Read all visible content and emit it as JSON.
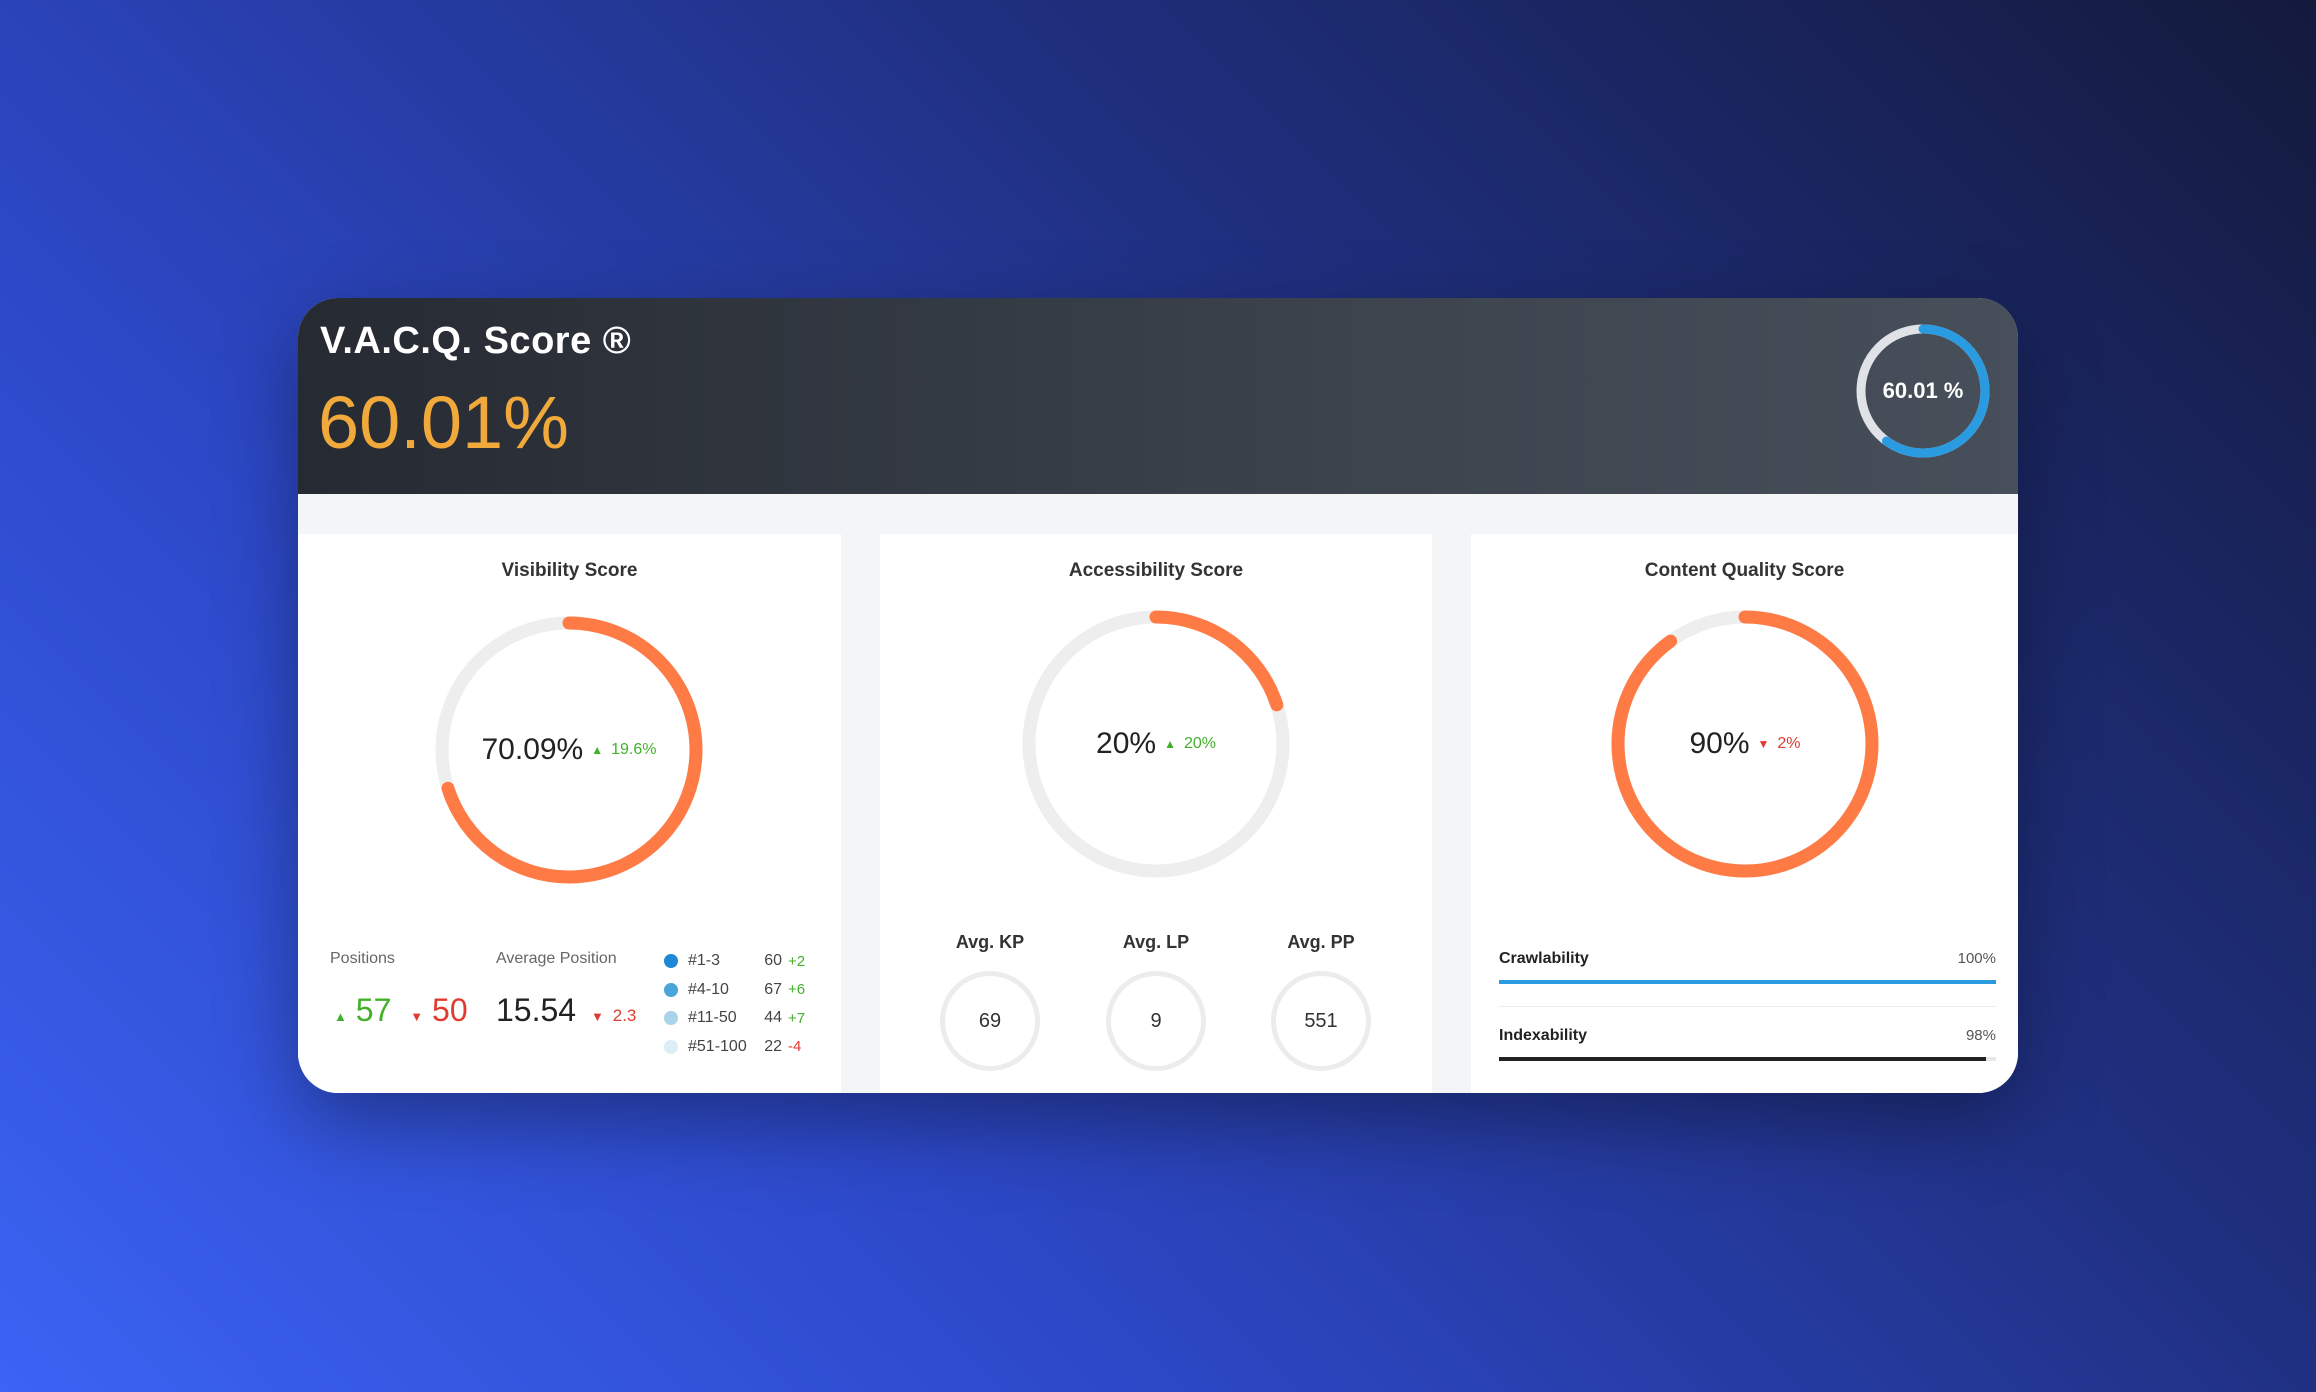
{
  "header": {
    "title": "V.A.C.Q. Score ®",
    "value": "60.01%",
    "ring_label": "60.01 %",
    "ring_fraction": 0.6001,
    "ring_color": "#2a9be0"
  },
  "colors": {
    "accent": "#f2a93b",
    "donut": "#ff7b45",
    "track": "#eeeeee",
    "up": "#43b02a",
    "down": "#e03b30"
  },
  "visibility": {
    "title": "Visibility Score",
    "score": "70.09%",
    "fraction": 0.7009,
    "delta": "19.6%",
    "delta_dir": "up",
    "positions_label": "Positions",
    "positions_up": "57",
    "positions_down": "50",
    "avg_position_label": "Average Position",
    "avg_position": "15.54",
    "avg_position_delta": "2.3",
    "legend": [
      {
        "name": "#1-3",
        "value": "60",
        "delta": "+2",
        "dir": "up",
        "color": "#1e88d6"
      },
      {
        "name": "#4-10",
        "value": "67",
        "delta": "+6",
        "dir": "up",
        "color": "#4aa6d9"
      },
      {
        "name": "#11-50",
        "value": "44",
        "delta": "+7",
        "dir": "up",
        "color": "#a9d3e8"
      },
      {
        "name": "#51-100",
        "value": "22",
        "delta": "-4",
        "dir": "down",
        "color": "#dceef6"
      }
    ]
  },
  "accessibility": {
    "title": "Accessibility Score",
    "score": "20%",
    "fraction": 0.2,
    "delta": "20%",
    "delta_dir": "up",
    "avgs": [
      {
        "label": "Avg. KP",
        "value": "69"
      },
      {
        "label": "Avg. LP",
        "value": "9"
      },
      {
        "label": "Avg. PP",
        "value": "551"
      }
    ]
  },
  "content_quality": {
    "title": "Content Quality Score",
    "score": "90%",
    "fraction": 0.9,
    "delta": "2%",
    "delta_dir": "down",
    "bars": [
      {
        "label": "Crawlability",
        "pct": "100%",
        "fraction": 1.0,
        "color": "#2a9be0"
      },
      {
        "label": "Indexability",
        "pct": "98%",
        "fraction": 0.98,
        "color": "#222222"
      }
    ]
  }
}
